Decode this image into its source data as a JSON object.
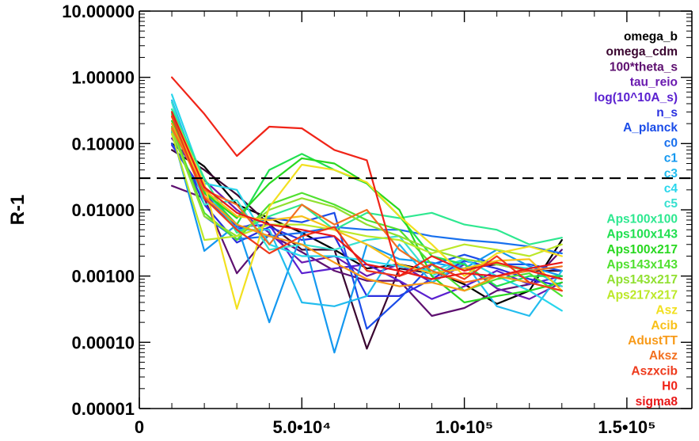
{
  "chart_data": {
    "type": "line",
    "title": "",
    "xlabel": "",
    "ylabel": "R-1",
    "yscale": "log",
    "xlim": [
      0,
      170000
    ],
    "ylim": [
      1e-05,
      10
    ],
    "x_tick_labels": [
      {
        "value": 0,
        "label": "0"
      },
      {
        "value": 50000,
        "label": "5.0•10⁴"
      },
      {
        "value": 100000,
        "label": "1.0•10⁵"
      },
      {
        "value": 150000,
        "label": "1.5•10⁵"
      }
    ],
    "y_tick_labels": [
      {
        "value": 10,
        "label": "10.00000"
      },
      {
        "value": 1,
        "label": "1.00000"
      },
      {
        "value": 0.1,
        "label": "0.10000"
      },
      {
        "value": 0.01,
        "label": "0.01000"
      },
      {
        "value": 0.001,
        "label": "0.00100"
      },
      {
        "value": 0.0001,
        "label": "0.00010"
      },
      {
        "value": 1e-05,
        "label": "0.00001"
      }
    ],
    "threshold": {
      "value": 0.03,
      "style": "dashed",
      "color": "#000000"
    },
    "grid": false,
    "legend_placement": "right",
    "x": [
      10000,
      20000,
      30000,
      40000,
      50000,
      60000,
      70000,
      80000,
      90000,
      100000,
      110000,
      120000,
      130000
    ],
    "series": [
      {
        "name": "omega_b",
        "color": "#000000",
        "values": [
          0.1,
          0.045,
          0.012,
          0.0075,
          0.0045,
          0.0025,
          0.0013,
          0.0015,
          0.0012,
          0.00075,
          0.00038,
          0.0006,
          0.0035
        ]
      },
      {
        "name": "omega_cdm",
        "color": "#3a0630",
        "values": [
          0.08,
          0.04,
          0.017,
          0.006,
          0.0025,
          0.0025,
          8e-05,
          0.0013,
          0.0011,
          0.0013,
          0.0015,
          0.0012,
          0.0012
        ]
      },
      {
        "name": "100*theta_s",
        "color": "#5e1070",
        "values": [
          0.023,
          0.015,
          0.0011,
          0.0043,
          0.0023,
          0.0012,
          0.00085,
          0.00085,
          0.00025,
          0.00033,
          0.0006,
          0.00075,
          0.0025
        ]
      },
      {
        "name": "tau_reio",
        "color": "#6a1ab0",
        "values": [
          0.12,
          0.028,
          0.01,
          0.0045,
          0.0016,
          0.002,
          0.001,
          0.0015,
          0.0008,
          0.0015,
          0.00065,
          0.00045,
          0.0008
        ]
      },
      {
        "name": "log(10^10A_s)",
        "color": "#5a20d0",
        "values": [
          0.095,
          0.018,
          0.0055,
          0.006,
          0.0011,
          0.0013,
          0.0015,
          0.00085,
          0.00045,
          0.0007,
          0.0012,
          0.00075,
          0.001
        ]
      },
      {
        "name": "n_s",
        "color": "#2a30e0",
        "values": [
          0.14,
          0.012,
          0.0032,
          0.0055,
          0.0035,
          0.004,
          0.0005,
          0.0005,
          0.0009,
          0.0017,
          0.0013,
          0.0009,
          0.0007
        ]
      },
      {
        "name": "A_planck",
        "color": "#1a4ce8",
        "values": [
          0.1,
          0.016,
          0.005,
          0.0075,
          0.0065,
          0.009,
          0.00016,
          0.00045,
          0.0015,
          0.0021,
          0.0015,
          0.0015,
          0.0012
        ]
      },
      {
        "name": "c0",
        "color": "#1870ee",
        "values": [
          0.16,
          0.008,
          0.0036,
          0.004,
          0.0045,
          0.0055,
          0.005,
          0.005,
          0.004,
          0.0035,
          0.0032,
          0.0028,
          0.0022
        ]
      },
      {
        "name": "c1",
        "color": "#1498f0",
        "values": [
          0.15,
          0.0024,
          0.006,
          0.0002,
          0.0045,
          7e-05,
          0.003,
          0.0018,
          0.0016,
          0.0013,
          0.0025,
          0.0014,
          0.001
        ]
      },
      {
        "name": "c3",
        "color": "#22bcee",
        "values": [
          0.45,
          0.02,
          0.005,
          0.005,
          0.0004,
          0.00035,
          0.0005,
          0.003,
          0.0008,
          0.0016,
          0.00035,
          0.00025,
          0.0012
        ]
      },
      {
        "name": "c4",
        "color": "#28d6ec",
        "values": [
          0.55,
          0.025,
          0.02,
          0.003,
          0.002,
          0.002,
          0.0017,
          0.0014,
          0.0012,
          0.0018,
          0.001,
          0.0006,
          0.0003
        ]
      },
      {
        "name": "c5",
        "color": "#38e0d0",
        "values": [
          0.42,
          0.012,
          0.014,
          0.0025,
          0.003,
          0.0025,
          0.0035,
          0.004,
          0.001,
          0.0018,
          0.0015,
          0.0013,
          0.0007
        ]
      },
      {
        "name": "Aps100x100",
        "color": "#2ee890",
        "values": [
          0.33,
          0.03,
          0.0045,
          0.008,
          0.012,
          0.005,
          0.009,
          0.0075,
          0.009,
          0.006,
          0.005,
          0.003,
          0.0038
        ]
      },
      {
        "name": "Aps100x143",
        "color": "#20e050",
        "values": [
          0.28,
          0.02,
          0.006,
          0.04,
          0.07,
          0.04,
          0.025,
          0.008,
          0.002,
          0.0015,
          0.0007,
          0.001,
          0.001
        ]
      },
      {
        "name": "Aps100x217",
        "color": "#28d820",
        "values": [
          0.22,
          0.018,
          0.0075,
          0.025,
          0.06,
          0.05,
          0.025,
          0.01,
          0.001,
          0.0004,
          0.0005,
          0.0006,
          0.0008
        ]
      },
      {
        "name": "Aps143x143",
        "color": "#50e030",
        "values": [
          0.18,
          0.009,
          0.0035,
          0.012,
          0.018,
          0.012,
          0.007,
          0.005,
          0.0015,
          0.0006,
          0.0009,
          0.0011,
          0.0005
        ]
      },
      {
        "name": "Aps143x217",
        "color": "#90e030",
        "values": [
          0.16,
          0.008,
          0.004,
          0.01,
          0.015,
          0.011,
          0.006,
          0.004,
          0.0025,
          0.0018,
          0.0015,
          0.0012,
          0.0009
        ]
      },
      {
        "name": "Aps217x217",
        "color": "#bce828",
        "values": [
          0.14,
          0.0035,
          0.004,
          0.006,
          0.006,
          0.005,
          0.004,
          0.0035,
          0.0022,
          0.003,
          0.0025,
          0.002,
          0.003
        ]
      },
      {
        "name": "Asz",
        "color": "#f2e020",
        "values": [
          0.3,
          0.025,
          0.00032,
          0.011,
          0.048,
          0.04,
          0.026,
          0.008,
          0.003,
          0.001,
          0.0022,
          0.0028,
          0.002
        ]
      },
      {
        "name": "Acib",
        "color": "#f8c018",
        "values": [
          0.25,
          0.02,
          0.008,
          0.007,
          0.008,
          0.005,
          0.003,
          0.0015,
          0.0011,
          0.0013,
          0.0017,
          0.0018,
          0.0006
        ]
      },
      {
        "name": "AdustTT",
        "color": "#f89a18",
        "values": [
          0.2,
          0.016,
          0.006,
          0.004,
          0.003,
          0.0016,
          0.0009,
          0.0007,
          0.0008,
          0.0006,
          0.001,
          0.0008,
          0.0006
        ]
      },
      {
        "name": "Aksz",
        "color": "#f27020",
        "values": [
          0.17,
          0.02,
          0.012,
          0.003,
          0.012,
          0.006,
          0.01,
          0.0025,
          0.0012,
          0.0008,
          0.001,
          0.0012,
          0.0014
        ]
      },
      {
        "name": "Aszxcib",
        "color": "#ee3a1c",
        "values": [
          0.26,
          0.015,
          0.005,
          0.0022,
          0.004,
          0.0055,
          0.0012,
          0.001,
          0.0015,
          0.0009,
          0.002,
          0.0008,
          0.0006
        ]
      },
      {
        "name": "H0",
        "color": "#f02418",
        "values": [
          1.0,
          0.28,
          0.065,
          0.18,
          0.17,
          0.08,
          0.056,
          0.001,
          0.002,
          0.0012,
          0.0016,
          0.0012,
          0.0009
        ]
      },
      {
        "name": "sigma8",
        "color": "#e81818",
        "values": [
          0.3,
          0.022,
          0.009,
          0.006,
          0.005,
          0.004,
          0.0015,
          0.0012,
          0.0009,
          0.0011,
          0.001,
          0.0013,
          0.0016
        ]
      }
    ]
  }
}
